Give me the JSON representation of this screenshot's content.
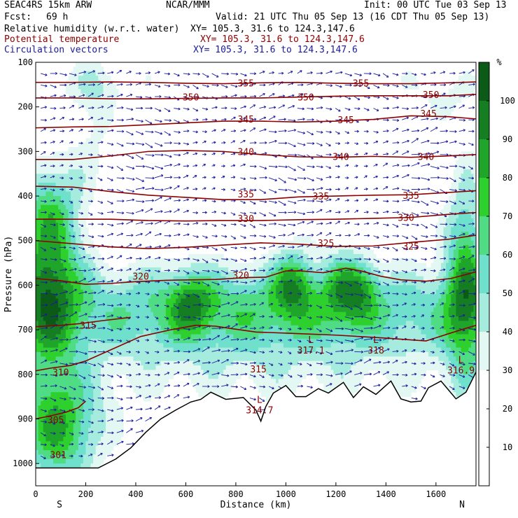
{
  "header": {
    "model": "SEAC4RS 15km ARW",
    "org": "NCAR/MMM",
    "init": "Init: 00 UTC Tue 03 Sep 13",
    "fcst_label": "Fcst:",
    "fcst_value": "69 h",
    "valid": "Valid: 21 UTC Thu 05 Sep 13 (16 CDT Thu 05 Sep 13)",
    "fields": [
      {
        "name": "Relative humidity (w.r.t. water)",
        "xy": "XY= 105.3, 31.6 to 124.3,147.6",
        "color": "#000000"
      },
      {
        "name": "Potential temperature",
        "xy": "XY= 105.3, 31.6 to 124.3,147.6",
        "color": "#8b0000"
      },
      {
        "name": "Circulation vectors",
        "xy": "XY= 105.3, 31.6 to 124.3,147.6",
        "color": "#1a1aa0"
      }
    ]
  },
  "chart_data": {
    "type": "heatmap",
    "title": "Relative humidity (w.r.t. water)",
    "xlabel": "Distance (km)",
    "ylabel": "Pressure (hPa)",
    "xlim": [
      0,
      1760
    ],
    "ylim": [
      1050,
      100
    ],
    "x_ticks": [
      "0",
      "200",
      "400",
      "600",
      "800",
      "1000",
      "1200",
      "1400",
      "1600"
    ],
    "y_ticks": [
      "100",
      "200",
      "300",
      "400",
      "500",
      "600",
      "700",
      "800",
      "900",
      "1000"
    ],
    "x_ends": [
      "S",
      "N"
    ],
    "colorbar": {
      "unit": "%",
      "ticks": [
        "10",
        "20",
        "30",
        "40",
        "50",
        "60",
        "70",
        "80",
        "90",
        "100"
      ],
      "levels": [
        {
          "min": 30,
          "color": "#e3f8f2"
        },
        {
          "min": 40,
          "color": "#a6ecde"
        },
        {
          "min": 50,
          "color": "#6fe0cb"
        },
        {
          "min": 60,
          "color": "#4fdc84"
        },
        {
          "min": 70,
          "color": "#2ed02e"
        },
        {
          "min": 80,
          "color": "#1fa52a"
        },
        {
          "min": 90,
          "color": "#157d22"
        },
        {
          "min": 100,
          "color": "#0c5a18"
        }
      ]
    },
    "theta_contours": [
      {
        "level": 305,
        "label": "305",
        "points": [
          [
            0,
            900
          ],
          [
            60,
            893
          ],
          [
            120,
            885
          ],
          [
            170,
            875
          ],
          [
            200,
            860
          ]
        ]
      },
      {
        "level": 310,
        "label": "310",
        "points": [
          [
            0,
            792
          ],
          [
            60,
            786
          ],
          [
            140,
            780
          ],
          [
            200,
            770
          ],
          [
            300,
            745
          ],
          [
            420,
            715
          ],
          [
            540,
            700
          ],
          [
            640,
            690
          ],
          [
            720,
            692
          ],
          [
            790,
            698
          ],
          [
            880,
            705
          ],
          [
            1020,
            708
          ],
          [
            1200,
            712
          ],
          [
            1380,
            718
          ],
          [
            1560,
            725
          ],
          [
            1700,
            700
          ],
          [
            1760,
            690
          ]
        ]
      },
      {
        "level": 315,
        "label": "315",
        "points": [
          [
            0,
            693
          ],
          [
            100,
            690
          ],
          [
            180,
            686
          ],
          [
            260,
            680
          ],
          [
            380,
            672
          ]
        ]
      },
      {
        "level": 320,
        "label": "320",
        "points": [
          [
            0,
            585
          ],
          [
            100,
            590
          ],
          [
            200,
            598
          ],
          [
            300,
            596
          ],
          [
            400,
            592
          ],
          [
            520,
            589
          ],
          [
            620,
            588
          ],
          [
            720,
            587
          ],
          [
            840,
            583
          ],
          [
            920,
            582
          ],
          [
            1000,
            568
          ],
          [
            1060,
            568
          ],
          [
            1150,
            572
          ],
          [
            1240,
            562
          ],
          [
            1300,
            568
          ],
          [
            1380,
            580
          ],
          [
            1460,
            588
          ],
          [
            1560,
            591
          ],
          [
            1660,
            585
          ],
          [
            1760,
            570
          ]
        ]
      },
      {
        "level": 325,
        "label": "325",
        "points": [
          [
            0,
            500
          ],
          [
            150,
            507
          ],
          [
            300,
            514
          ],
          [
            450,
            518
          ],
          [
            600,
            515
          ],
          [
            750,
            510
          ],
          [
            900,
            505
          ],
          [
            1050,
            508
          ],
          [
            1200,
            513
          ],
          [
            1350,
            512
          ],
          [
            1500,
            504
          ],
          [
            1650,
            497
          ],
          [
            1760,
            488
          ]
        ]
      },
      {
        "level": 330,
        "label": "330",
        "points": [
          [
            0,
            452
          ],
          [
            150,
            452
          ],
          [
            300,
            452
          ],
          [
            450,
            455
          ],
          [
            600,
            456
          ],
          [
            750,
            455
          ],
          [
            900,
            455
          ],
          [
            1050,
            453
          ],
          [
            1200,
            452
          ],
          [
            1350,
            450
          ],
          [
            1500,
            448
          ],
          [
            1650,
            441
          ],
          [
            1760,
            437
          ]
        ]
      },
      {
        "level": 335,
        "label": "335",
        "points": [
          [
            0,
            378
          ],
          [
            150,
            380
          ],
          [
            300,
            390
          ],
          [
            450,
            398
          ],
          [
            600,
            403
          ],
          [
            750,
            408
          ],
          [
            900,
            408
          ],
          [
            1050,
            402
          ],
          [
            1200,
            400
          ],
          [
            1350,
            398
          ],
          [
            1500,
            397
          ],
          [
            1650,
            392
          ],
          [
            1760,
            388
          ]
        ]
      },
      {
        "level": 340,
        "label": "340",
        "points": [
          [
            0,
            318
          ],
          [
            150,
            318
          ],
          [
            300,
            310
          ],
          [
            450,
            300
          ],
          [
            600,
            298
          ],
          [
            750,
            300
          ],
          [
            900,
            307
          ],
          [
            1050,
            312
          ],
          [
            1200,
            313
          ],
          [
            1350,
            311
          ],
          [
            1500,
            313
          ],
          [
            1650,
            310
          ],
          [
            1760,
            307
          ]
        ]
      },
      {
        "level": 345,
        "label": "345",
        "points": [
          [
            0,
            247
          ],
          [
            150,
            245
          ],
          [
            300,
            244
          ],
          [
            450,
            240
          ],
          [
            600,
            236
          ],
          [
            750,
            232
          ],
          [
            900,
            232
          ],
          [
            1050,
            234
          ],
          [
            1200,
            232
          ],
          [
            1350,
            228
          ],
          [
            1500,
            220
          ],
          [
            1650,
            222
          ],
          [
            1760,
            227
          ]
        ]
      },
      {
        "level": 350,
        "label": "350",
        "points": [
          [
            0,
            180
          ],
          [
            150,
            180
          ],
          [
            300,
            182
          ],
          [
            450,
            182
          ],
          [
            600,
            181
          ],
          [
            750,
            180
          ],
          [
            900,
            180
          ],
          [
            1050,
            178
          ],
          [
            1200,
            176
          ],
          [
            1350,
            175
          ],
          [
            1500,
            175
          ],
          [
            1650,
            175
          ],
          [
            1760,
            172
          ]
        ]
      },
      {
        "level": 355,
        "label": "355",
        "points": [
          [
            0,
            145
          ],
          [
            150,
            145
          ],
          [
            300,
            144
          ],
          [
            450,
            145
          ],
          [
            600,
            147
          ],
          [
            750,
            148
          ],
          [
            900,
            146
          ],
          [
            1050,
            145
          ],
          [
            1200,
            147
          ],
          [
            1350,
            148
          ],
          [
            1500,
            148
          ],
          [
            1650,
            146
          ],
          [
            1760,
            144
          ]
        ]
      }
    ],
    "theta_labels": [
      {
        "text": "355",
        "x": 840,
        "y": 146
      },
      {
        "text": "355",
        "x": 1300,
        "y": 146
      },
      {
        "text": "350",
        "x": 620,
        "y": 178
      },
      {
        "text": "350",
        "x": 1080,
        "y": 178
      },
      {
        "text": "350",
        "x": 1580,
        "y": 172
      },
      {
        "text": "345",
        "x": 840,
        "y": 227
      },
      {
        "text": "345",
        "x": 1240,
        "y": 229
      },
      {
        "text": "345",
        "x": 1570,
        "y": 215
      },
      {
        "text": "340",
        "x": 840,
        "y": 300
      },
      {
        "text": "340",
        "x": 1220,
        "y": 311
      },
      {
        "text": "340",
        "x": 1560,
        "y": 311
      },
      {
        "text": "335",
        "x": 840,
        "y": 395
      },
      {
        "text": "335",
        "x": 1140,
        "y": 400
      },
      {
        "text": "335",
        "x": 1500,
        "y": 398
      },
      {
        "text": "330",
        "x": 840,
        "y": 450
      },
      {
        "text": "330",
        "x": 1480,
        "y": 448
      },
      {
        "text": "325",
        "x": 1160,
        "y": 505
      },
      {
        "text": "325",
        "x": 1500,
        "y": 512
      },
      {
        "text": "320",
        "x": 420,
        "y": 580
      },
      {
        "text": "320",
        "x": 820,
        "y": 577
      },
      {
        "text": "315",
        "x": 210,
        "y": 690
      },
      {
        "text": "315",
        "x": 890,
        "y": 788
      },
      {
        "text": "310",
        "x": 100,
        "y": 795
      },
      {
        "text": "305",
        "x": 80,
        "y": 902
      },
      {
        "text": "301",
        "x": 90,
        "y": 980
      }
    ],
    "low_centers": [
      {
        "mark": "L",
        "value": "314.7",
        "x": 895,
        "y": 880
      },
      {
        "mark": "L",
        "value": "317.1",
        "x": 1100,
        "y": 745
      },
      {
        "mark": "L",
        "value": "318",
        "x": 1360,
        "y": 745
      },
      {
        "mark": "L",
        "value": "316.9",
        "x": 1700,
        "y": 790
      }
    ],
    "terrain": [
      [
        0,
        1010
      ],
      [
        250,
        1010
      ],
      [
        320,
        990
      ],
      [
        380,
        965
      ],
      [
        440,
        930
      ],
      [
        500,
        900
      ],
      [
        560,
        880
      ],
      [
        620,
        862
      ],
      [
        660,
        856
      ],
      [
        700,
        840
      ],
      [
        760,
        856
      ],
      [
        830,
        852
      ],
      [
        880,
        880
      ],
      [
        900,
        905
      ],
      [
        920,
        872
      ],
      [
        950,
        842
      ],
      [
        1000,
        825
      ],
      [
        1040,
        850
      ],
      [
        1080,
        850
      ],
      [
        1130,
        832
      ],
      [
        1170,
        842
      ],
      [
        1230,
        818
      ],
      [
        1270,
        852
      ],
      [
        1310,
        828
      ],
      [
        1360,
        845
      ],
      [
        1420,
        815
      ],
      [
        1460,
        855
      ],
      [
        1500,
        862
      ],
      [
        1540,
        860
      ],
      [
        1570,
        830
      ],
      [
        1620,
        815
      ],
      [
        1680,
        855
      ],
      [
        1720,
        840
      ],
      [
        1760,
        795
      ]
    ]
  }
}
